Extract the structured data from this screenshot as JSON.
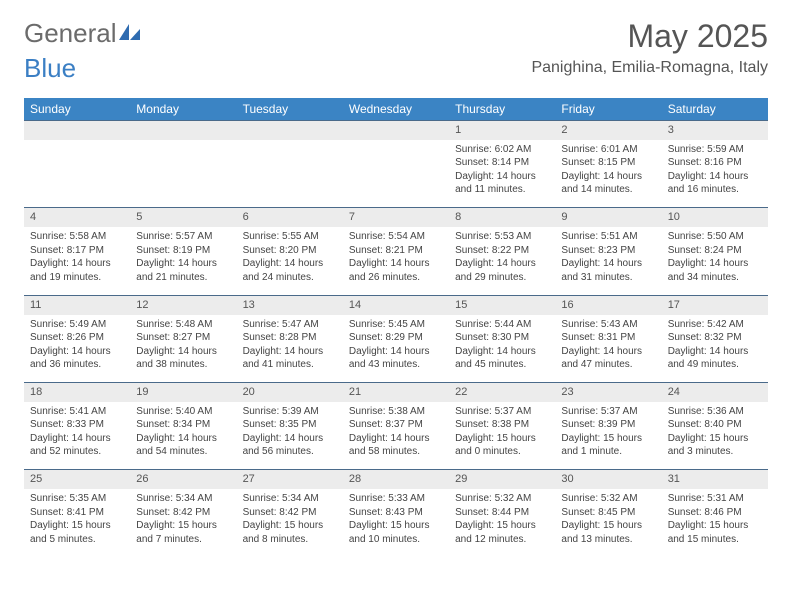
{
  "brand": {
    "word1": "General",
    "word2": "Blue"
  },
  "title": "May 2025",
  "location": "Panighina, Emilia-Romagna, Italy",
  "colors": {
    "header_bg": "#3b84c4",
    "header_text": "#ffffff",
    "daynum_bg": "#ececec",
    "rule": "#4a6a8a",
    "text": "#444444",
    "logo_gray": "#6b6b6b",
    "logo_blue": "#3b7fc4"
  },
  "weekdays": [
    "Sunday",
    "Monday",
    "Tuesday",
    "Wednesday",
    "Thursday",
    "Friday",
    "Saturday"
  ],
  "weeks": [
    {
      "nums": [
        "",
        "",
        "",
        "",
        "1",
        "2",
        "3"
      ],
      "cells": [
        null,
        null,
        null,
        null,
        {
          "sunrise": "Sunrise: 6:02 AM",
          "sunset": "Sunset: 8:14 PM",
          "day1": "Daylight: 14 hours",
          "day2": "and 11 minutes."
        },
        {
          "sunrise": "Sunrise: 6:01 AM",
          "sunset": "Sunset: 8:15 PM",
          "day1": "Daylight: 14 hours",
          "day2": "and 14 minutes."
        },
        {
          "sunrise": "Sunrise: 5:59 AM",
          "sunset": "Sunset: 8:16 PM",
          "day1": "Daylight: 14 hours",
          "day2": "and 16 minutes."
        }
      ]
    },
    {
      "nums": [
        "4",
        "5",
        "6",
        "7",
        "8",
        "9",
        "10"
      ],
      "cells": [
        {
          "sunrise": "Sunrise: 5:58 AM",
          "sunset": "Sunset: 8:17 PM",
          "day1": "Daylight: 14 hours",
          "day2": "and 19 minutes."
        },
        {
          "sunrise": "Sunrise: 5:57 AM",
          "sunset": "Sunset: 8:19 PM",
          "day1": "Daylight: 14 hours",
          "day2": "and 21 minutes."
        },
        {
          "sunrise": "Sunrise: 5:55 AM",
          "sunset": "Sunset: 8:20 PM",
          "day1": "Daylight: 14 hours",
          "day2": "and 24 minutes."
        },
        {
          "sunrise": "Sunrise: 5:54 AM",
          "sunset": "Sunset: 8:21 PM",
          "day1": "Daylight: 14 hours",
          "day2": "and 26 minutes."
        },
        {
          "sunrise": "Sunrise: 5:53 AM",
          "sunset": "Sunset: 8:22 PM",
          "day1": "Daylight: 14 hours",
          "day2": "and 29 minutes."
        },
        {
          "sunrise": "Sunrise: 5:51 AM",
          "sunset": "Sunset: 8:23 PM",
          "day1": "Daylight: 14 hours",
          "day2": "and 31 minutes."
        },
        {
          "sunrise": "Sunrise: 5:50 AM",
          "sunset": "Sunset: 8:24 PM",
          "day1": "Daylight: 14 hours",
          "day2": "and 34 minutes."
        }
      ]
    },
    {
      "nums": [
        "11",
        "12",
        "13",
        "14",
        "15",
        "16",
        "17"
      ],
      "cells": [
        {
          "sunrise": "Sunrise: 5:49 AM",
          "sunset": "Sunset: 8:26 PM",
          "day1": "Daylight: 14 hours",
          "day2": "and 36 minutes."
        },
        {
          "sunrise": "Sunrise: 5:48 AM",
          "sunset": "Sunset: 8:27 PM",
          "day1": "Daylight: 14 hours",
          "day2": "and 38 minutes."
        },
        {
          "sunrise": "Sunrise: 5:47 AM",
          "sunset": "Sunset: 8:28 PM",
          "day1": "Daylight: 14 hours",
          "day2": "and 41 minutes."
        },
        {
          "sunrise": "Sunrise: 5:45 AM",
          "sunset": "Sunset: 8:29 PM",
          "day1": "Daylight: 14 hours",
          "day2": "and 43 minutes."
        },
        {
          "sunrise": "Sunrise: 5:44 AM",
          "sunset": "Sunset: 8:30 PM",
          "day1": "Daylight: 14 hours",
          "day2": "and 45 minutes."
        },
        {
          "sunrise": "Sunrise: 5:43 AM",
          "sunset": "Sunset: 8:31 PM",
          "day1": "Daylight: 14 hours",
          "day2": "and 47 minutes."
        },
        {
          "sunrise": "Sunrise: 5:42 AM",
          "sunset": "Sunset: 8:32 PM",
          "day1": "Daylight: 14 hours",
          "day2": "and 49 minutes."
        }
      ]
    },
    {
      "nums": [
        "18",
        "19",
        "20",
        "21",
        "22",
        "23",
        "24"
      ],
      "cells": [
        {
          "sunrise": "Sunrise: 5:41 AM",
          "sunset": "Sunset: 8:33 PM",
          "day1": "Daylight: 14 hours",
          "day2": "and 52 minutes."
        },
        {
          "sunrise": "Sunrise: 5:40 AM",
          "sunset": "Sunset: 8:34 PM",
          "day1": "Daylight: 14 hours",
          "day2": "and 54 minutes."
        },
        {
          "sunrise": "Sunrise: 5:39 AM",
          "sunset": "Sunset: 8:35 PM",
          "day1": "Daylight: 14 hours",
          "day2": "and 56 minutes."
        },
        {
          "sunrise": "Sunrise: 5:38 AM",
          "sunset": "Sunset: 8:37 PM",
          "day1": "Daylight: 14 hours",
          "day2": "and 58 minutes."
        },
        {
          "sunrise": "Sunrise: 5:37 AM",
          "sunset": "Sunset: 8:38 PM",
          "day1": "Daylight: 15 hours",
          "day2": "and 0 minutes."
        },
        {
          "sunrise": "Sunrise: 5:37 AM",
          "sunset": "Sunset: 8:39 PM",
          "day1": "Daylight: 15 hours",
          "day2": "and 1 minute."
        },
        {
          "sunrise": "Sunrise: 5:36 AM",
          "sunset": "Sunset: 8:40 PM",
          "day1": "Daylight: 15 hours",
          "day2": "and 3 minutes."
        }
      ]
    },
    {
      "nums": [
        "25",
        "26",
        "27",
        "28",
        "29",
        "30",
        "31"
      ],
      "cells": [
        {
          "sunrise": "Sunrise: 5:35 AM",
          "sunset": "Sunset: 8:41 PM",
          "day1": "Daylight: 15 hours",
          "day2": "and 5 minutes."
        },
        {
          "sunrise": "Sunrise: 5:34 AM",
          "sunset": "Sunset: 8:42 PM",
          "day1": "Daylight: 15 hours",
          "day2": "and 7 minutes."
        },
        {
          "sunrise": "Sunrise: 5:34 AM",
          "sunset": "Sunset: 8:42 PM",
          "day1": "Daylight: 15 hours",
          "day2": "and 8 minutes."
        },
        {
          "sunrise": "Sunrise: 5:33 AM",
          "sunset": "Sunset: 8:43 PM",
          "day1": "Daylight: 15 hours",
          "day2": "and 10 minutes."
        },
        {
          "sunrise": "Sunrise: 5:32 AM",
          "sunset": "Sunset: 8:44 PM",
          "day1": "Daylight: 15 hours",
          "day2": "and 12 minutes."
        },
        {
          "sunrise": "Sunrise: 5:32 AM",
          "sunset": "Sunset: 8:45 PM",
          "day1": "Daylight: 15 hours",
          "day2": "and 13 minutes."
        },
        {
          "sunrise": "Sunrise: 5:31 AM",
          "sunset": "Sunset: 8:46 PM",
          "day1": "Daylight: 15 hours",
          "day2": "and 15 minutes."
        }
      ]
    }
  ]
}
